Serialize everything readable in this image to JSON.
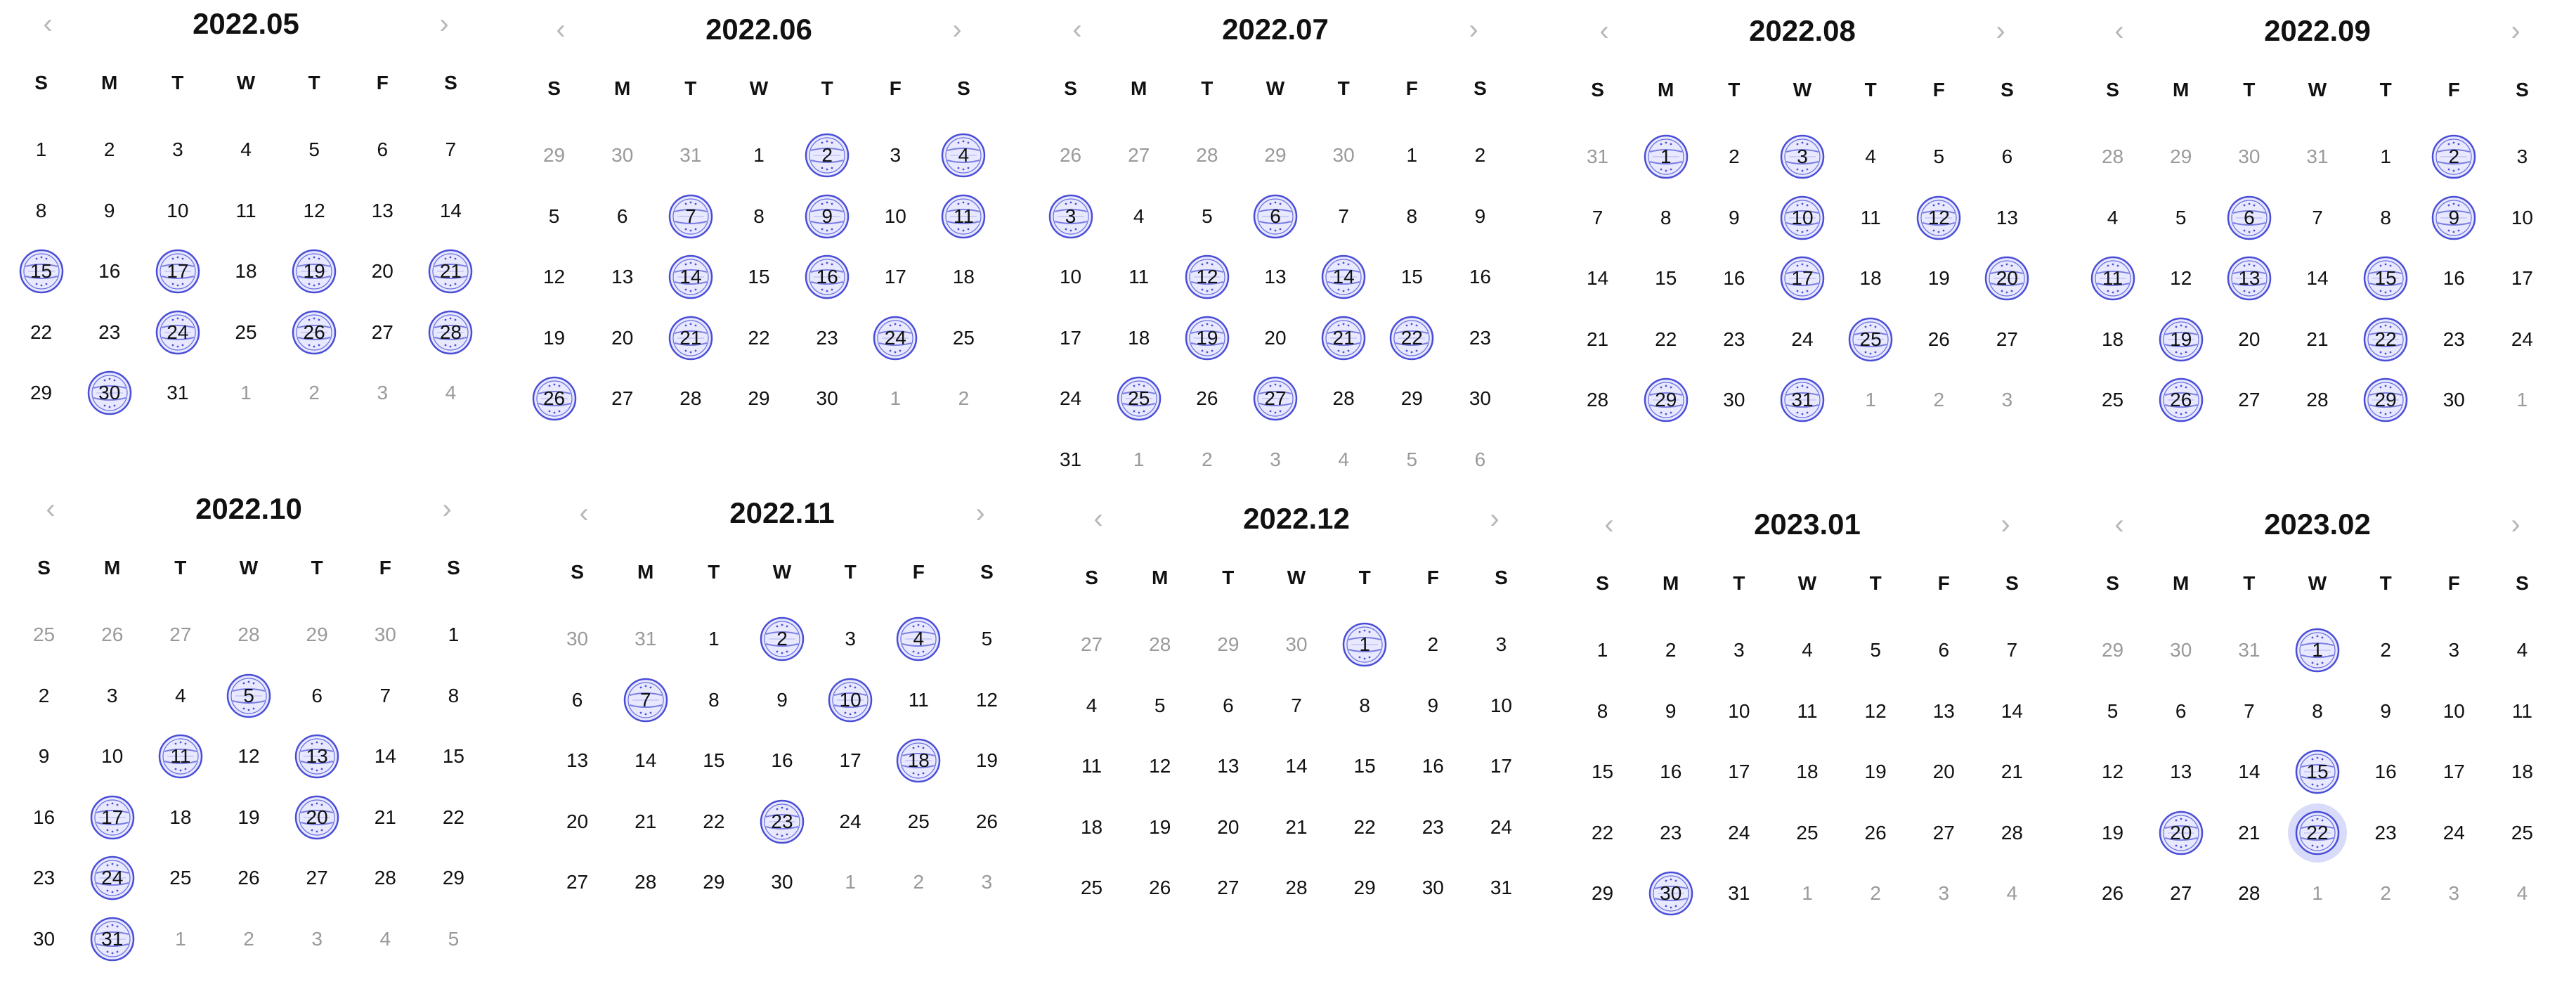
{
  "ui": {
    "weekdays": [
      "S",
      "M",
      "T",
      "W",
      "T",
      "F",
      "S"
    ],
    "prev_icon": "chevron-left-icon",
    "next_icon": "chevron-right-icon",
    "prev_glyph": "‹",
    "next_glyph": "›"
  },
  "colors": {
    "stamp_stroke": "#4a4ed6",
    "stamp_fill": "#e8e9ff",
    "selected_bg": "#d9dbfa",
    "day_text": "#111111",
    "out_of_month_text": "#9a9a9a",
    "nav_arrow": "#b7b7b7"
  },
  "months": [
    {
      "title": "2022.05",
      "year": 2022,
      "month": 5,
      "stamped": [
        15,
        17,
        19,
        21,
        24,
        26,
        28,
        30
      ]
    },
    {
      "title": "2022.06",
      "year": 2022,
      "month": 6,
      "stamped": [
        2,
        4,
        7,
        9,
        11,
        14,
        16,
        21,
        24,
        26
      ]
    },
    {
      "title": "2022.07",
      "year": 2022,
      "month": 7,
      "stamped": [
        3,
        6,
        12,
        14,
        19,
        21,
        22,
        25,
        27
      ]
    },
    {
      "title": "2022.08",
      "year": 2022,
      "month": 8,
      "stamped": [
        1,
        3,
        10,
        12,
        17,
        20,
        25,
        29,
        31
      ]
    },
    {
      "title": "2022.09",
      "year": 2022,
      "month": 9,
      "stamped": [
        2,
        6,
        9,
        11,
        13,
        15,
        19,
        22,
        26,
        29
      ]
    },
    {
      "title": "2022.10",
      "year": 2022,
      "month": 10,
      "stamped": [
        5,
        11,
        13,
        17,
        20,
        24,
        31
      ]
    },
    {
      "title": "2022.11",
      "year": 2022,
      "month": 11,
      "stamped": [
        2,
        4,
        7,
        10,
        18,
        23
      ]
    },
    {
      "title": "2022.12",
      "year": 2022,
      "month": 12,
      "stamped": [
        1
      ]
    },
    {
      "title": "2023.01",
      "year": 2023,
      "month": 1,
      "stamped": [
        30
      ]
    },
    {
      "title": "2023.02",
      "year": 2023,
      "month": 2,
      "stamped": [
        1,
        15,
        20,
        22
      ],
      "selected": 22
    }
  ]
}
